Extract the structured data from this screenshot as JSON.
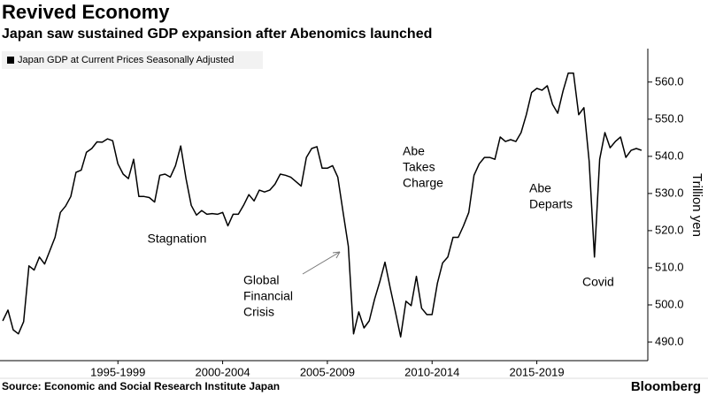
{
  "chart_data": {
    "type": "line",
    "title": "Revived Economy",
    "subtitle": "Japan saw sustained GDP expansion after Abenomics launched",
    "source": "Source: Economic and Social Research Institute Japan",
    "brand": "Bloomberg",
    "y_label": "Trillion yen",
    "legend": "top-left",
    "annotations": [
      [
        "Stagnation"
      ],
      [
        "Global",
        "Financial",
        "Crisis"
      ],
      [
        "Abe",
        "Takes",
        "Charge"
      ],
      [
        "Abe",
        "Departs"
      ],
      [
        "Covid"
      ]
    ],
    "xlim": [
      1991.87,
      2022.8
    ],
    "xticks": [
      {
        "value": 1997.5,
        "label": "1995-1999"
      },
      {
        "value": 2002.5,
        "label": "2000-2004"
      },
      {
        "value": 2007.5,
        "label": "2005-2009"
      },
      {
        "value": 2012.5,
        "label": "2010-2014"
      },
      {
        "value": 2017.5,
        "label": "2015-2019"
      }
    ],
    "ylim": [
      485,
      569
    ],
    "yticks": [
      {
        "value": 490,
        "label": "490.0"
      },
      {
        "value": 500,
        "label": "500.0"
      },
      {
        "value": 510,
        "label": "510.0"
      },
      {
        "value": 520,
        "label": "520.0"
      },
      {
        "value": 530,
        "label": "530.0"
      },
      {
        "value": 540,
        "label": "540.0"
      },
      {
        "value": 550,
        "label": "550.0"
      },
      {
        "value": 560,
        "label": "560.0"
      }
    ],
    "x": [
      1992,
      1992.25,
      1992.5,
      1992.75,
      1993,
      1993.25,
      1993.5,
      1993.75,
      1994,
      1994.25,
      1994.5,
      1994.75,
      1995,
      1995.25,
      1995.5,
      1995.75,
      1996,
      1996.25,
      1996.5,
      1996.75,
      1997,
      1997.25,
      1997.5,
      1997.75,
      1998,
      1998.25,
      1998.5,
      1998.75,
      1999,
      1999.25,
      1999.5,
      1999.75,
      2000,
      2000.25,
      2000.5,
      2000.75,
      2001,
      2001.25,
      2001.5,
      2001.75,
      2002,
      2002.25,
      2002.5,
      2002.75,
      2003,
      2003.25,
      2003.5,
      2003.75,
      2004,
      2004.25,
      2004.5,
      2004.75,
      2005,
      2005.25,
      2005.5,
      2005.75,
      2006,
      2006.25,
      2006.5,
      2006.75,
      2007,
      2007.25,
      2007.5,
      2007.75,
      2008,
      2008.25,
      2008.5,
      2008.75,
      2009,
      2009.25,
      2009.5,
      2009.75,
      2010,
      2010.25,
      2010.5,
      2010.75,
      2011,
      2011.25,
      2011.5,
      2011.75,
      2012,
      2012.25,
      2012.5,
      2012.75,
      2013,
      2013.25,
      2013.5,
      2013.75,
      2014,
      2014.25,
      2014.5,
      2014.75,
      2015,
      2015.25,
      2015.5,
      2015.75,
      2016,
      2016.25,
      2016.5,
      2016.75,
      2017,
      2017.25,
      2017.5,
      2017.75,
      2018,
      2018.25,
      2018.5,
      2018.75,
      2019,
      2019.25,
      2019.5,
      2019.75,
      2020,
      2020.25,
      2020.5,
      2020.75,
      2021,
      2021.25,
      2021.5,
      2021.75,
      2022,
      2022.25,
      2022.5
    ],
    "series": [
      {
        "name": "Japan GDP at Current Prices Seasonally Adjusted",
        "color": "#000000",
        "values": [
          495.7,
          498.6,
          493.3,
          492.2,
          495.5,
          510.5,
          509.4,
          512.9,
          511.0,
          514.6,
          518.2,
          524.9,
          526.6,
          529.2,
          535.7,
          536.3,
          541.1,
          542.1,
          543.9,
          543.8,
          544.7,
          544.2,
          538.0,
          535.2,
          534.0,
          539.2,
          529.2,
          529.2,
          528.9,
          527.7,
          534.9,
          535.2,
          534.4,
          537.5,
          542.8,
          534.0,
          526.8,
          524.2,
          525.4,
          524.4,
          524.6,
          524.4,
          524.9,
          521.3,
          524.4,
          524.4,
          526.8,
          529.7,
          528.0,
          530.9,
          530.4,
          530.9,
          532.5,
          535.2,
          534.9,
          534.4,
          533.2,
          532.0,
          539.7,
          542.1,
          542.6,
          536.8,
          536.8,
          537.5,
          534.4,
          524.9,
          515.8,
          492.2,
          498.1,
          493.8,
          495.7,
          501.5,
          506.2,
          511.5,
          504.6,
          498.1,
          491.4,
          501.0,
          499.8,
          507.7,
          499.1,
          497.4,
          497.4,
          505.8,
          511.3,
          512.9,
          518.2,
          518.2,
          521.3,
          524.9,
          534.9,
          538.0,
          539.7,
          539.7,
          539.2,
          545.2,
          544.0,
          544.5,
          544.0,
          546.4,
          551.2,
          557.2,
          558.3,
          557.8,
          559.0,
          554.0,
          551.6,
          557.6,
          562.4,
          562.4,
          551.2,
          553.1,
          538.7,
          512.9,
          539.2,
          546.4,
          542.3,
          544.0,
          545.2,
          539.7,
          541.6,
          542.1,
          541.6
        ]
      }
    ]
  }
}
